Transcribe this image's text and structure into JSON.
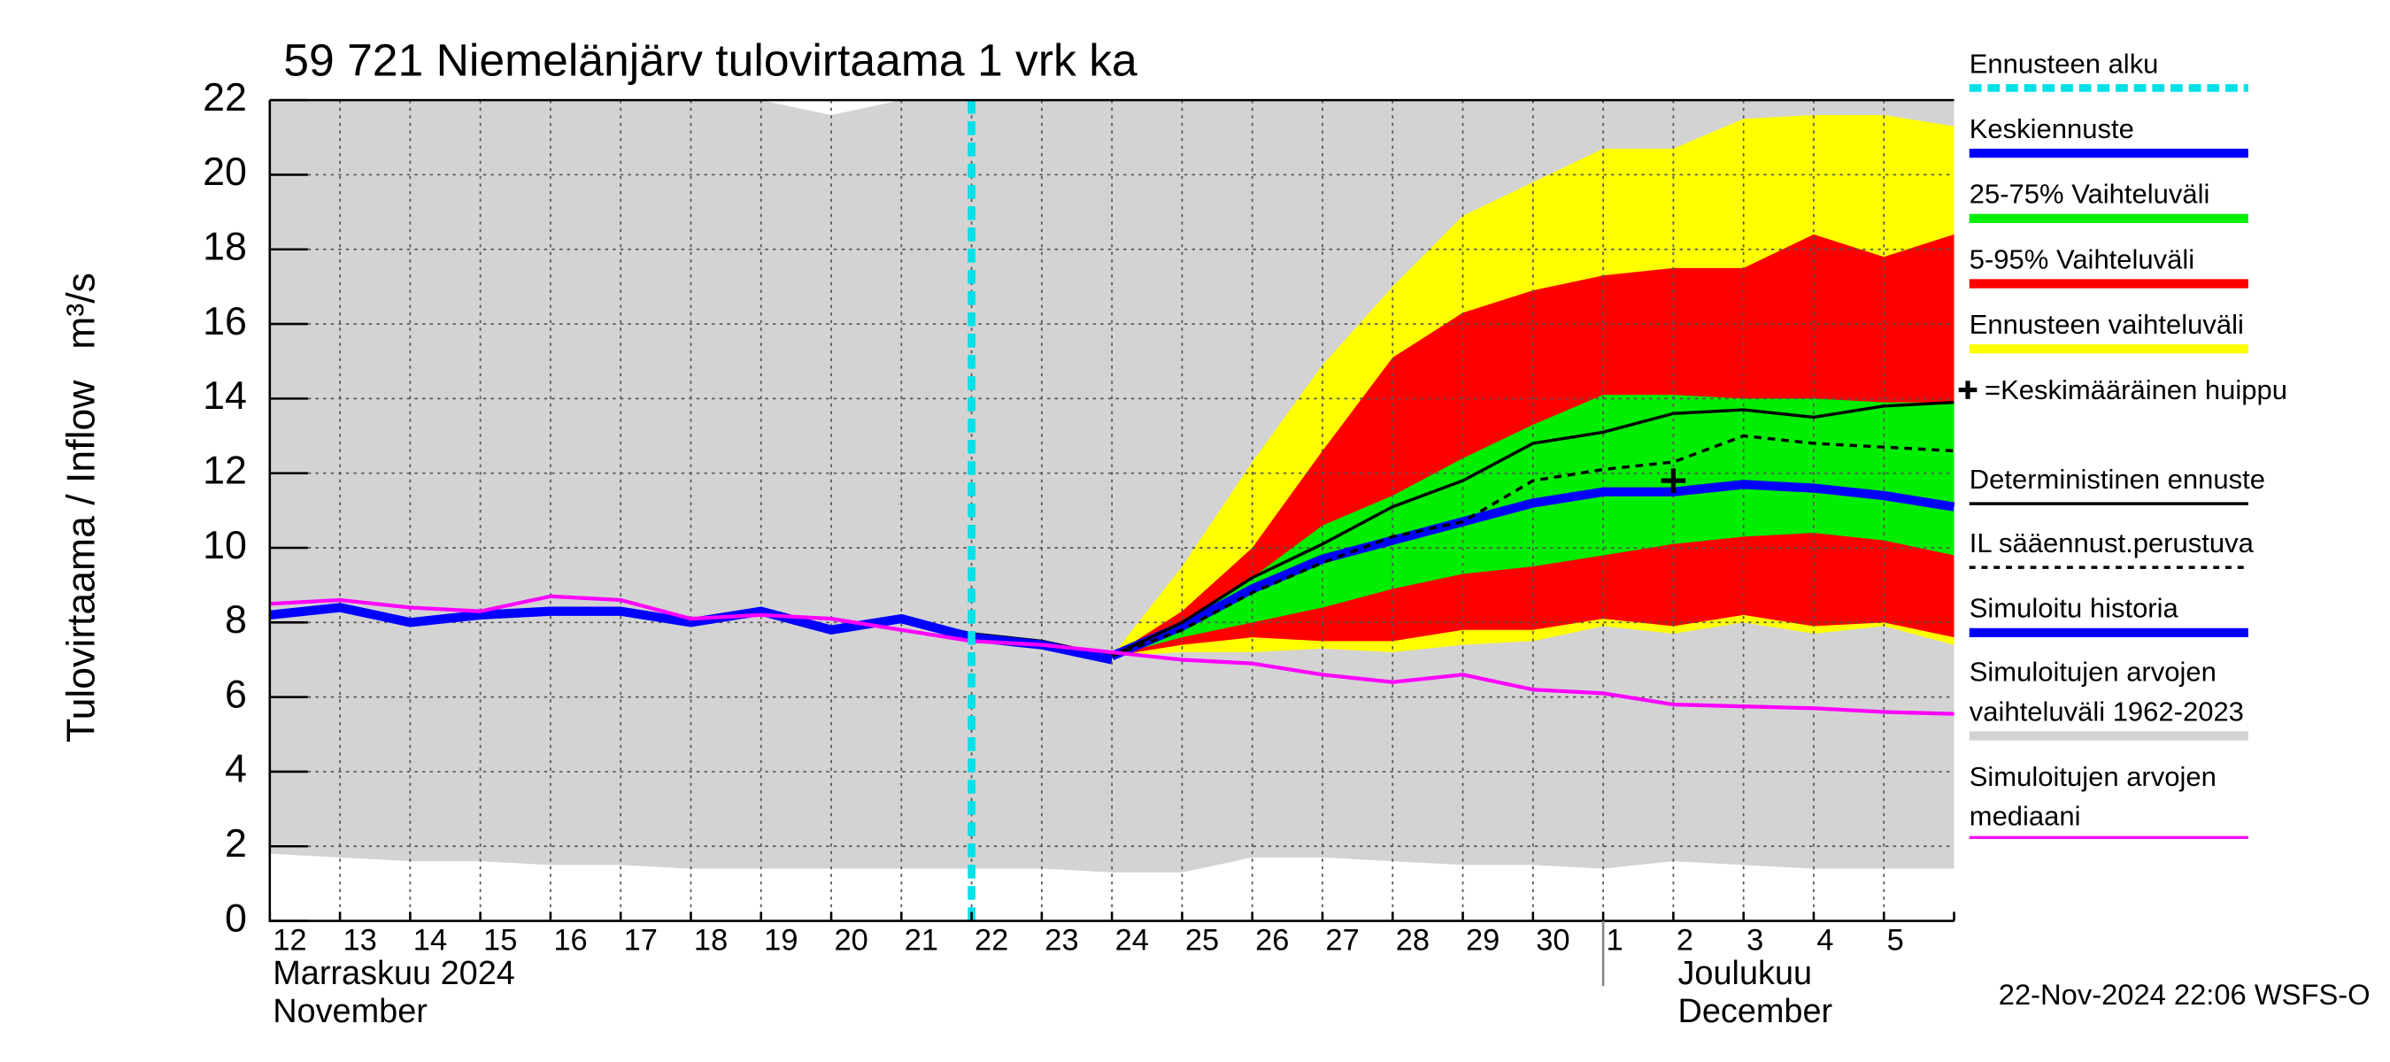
{
  "chart_data": {
    "type": "line",
    "title": "59 721 Niemelänjärv tulovirtaama 1 vrk ka",
    "y_label": "Tulovirtaama / Inflow",
    "y_unit": "m³/s",
    "footer": "22-Nov-2024 22:06 WSFS-O",
    "categories": [
      "12",
      "13",
      "14",
      "15",
      "16",
      "17",
      "18",
      "19",
      "20",
      "21",
      "22",
      "23",
      "24",
      "25",
      "26",
      "27",
      "28",
      "29",
      "30",
      "1",
      "2",
      "3",
      "4",
      "5",
      null
    ],
    "x_groups": [
      {
        "start": "12",
        "labels": [
          "Marraskuu 2024",
          "November"
        ]
      },
      {
        "start": "1",
        "labels": [
          "Joulukuu",
          "December"
        ]
      }
    ],
    "ylim": [
      0,
      22
    ],
    "yticks": [
      0,
      2,
      4,
      6,
      8,
      10,
      12,
      14,
      16,
      18,
      20,
      22
    ],
    "grid": true,
    "series": [
      {
        "name": "Ennusteen alku",
        "style": "vline",
        "color": "#00e0e8",
        "category": "22"
      },
      {
        "name": "Keskiennuste",
        "style": "line",
        "color": "#0000ff",
        "width": 6,
        "values": [
          null,
          null,
          null,
          null,
          null,
          null,
          null,
          null,
          null,
          null,
          null,
          null,
          7.1,
          7.9,
          8.9,
          9.7,
          10.2,
          10.7,
          11.2,
          11.5,
          11.5,
          11.7,
          11.6,
          11.4,
          11.1
        ]
      },
      {
        "name": "25-75% Vaihteluväli",
        "style": "band",
        "color": "#00ee00",
        "low": [
          null,
          null,
          null,
          null,
          null,
          null,
          null,
          null,
          null,
          null,
          null,
          null,
          7.1,
          7.6,
          8.0,
          8.4,
          8.9,
          9.3,
          9.5,
          9.8,
          10.1,
          10.3,
          10.4,
          10.2,
          9.8
        ],
        "high": [
          null,
          null,
          null,
          null,
          null,
          null,
          null,
          null,
          null,
          null,
          null,
          null,
          7.1,
          8.0,
          9.2,
          10.6,
          11.4,
          12.4,
          13.3,
          14.1,
          14.1,
          14.0,
          14.0,
          13.9,
          13.9
        ]
      },
      {
        "name": "5-95% Vaihteluväli",
        "style": "band",
        "color": "#ff0000",
        "low": [
          null,
          null,
          null,
          null,
          null,
          null,
          null,
          null,
          null,
          null,
          null,
          null,
          7.1,
          7.4,
          7.6,
          7.5,
          7.5,
          7.8,
          7.8,
          8.1,
          7.9,
          8.2,
          7.9,
          8.0,
          7.6
        ],
        "high": [
          null,
          null,
          null,
          null,
          null,
          null,
          null,
          null,
          null,
          null,
          null,
          null,
          7.1,
          8.3,
          10.0,
          12.6,
          15.1,
          16.3,
          16.9,
          17.3,
          17.5,
          17.5,
          18.4,
          17.8,
          18.4
        ]
      },
      {
        "name": "Ennusteen vaihteluväli",
        "style": "band",
        "color": "#ffff00",
        "low": [
          null,
          null,
          null,
          null,
          null,
          null,
          null,
          null,
          null,
          null,
          null,
          null,
          7.1,
          7.2,
          7.2,
          7.3,
          7.2,
          7.4,
          7.5,
          7.9,
          7.7,
          8.0,
          7.7,
          7.9,
          7.4
        ],
        "high": [
          null,
          null,
          null,
          null,
          null,
          null,
          null,
          null,
          null,
          null,
          null,
          null,
          7.1,
          9.5,
          12.3,
          14.9,
          17.0,
          18.9,
          19.8,
          20.7,
          20.7,
          21.5,
          21.6,
          21.6,
          21.3
        ]
      },
      {
        "name": "=Keskimääräinen huippu",
        "style": "marker",
        "color": "#000000",
        "category": "2",
        "value": 11.8
      },
      {
        "name": "Deterministinen ennuste",
        "style": "line",
        "color": "#000000",
        "width": 2,
        "values": [
          null,
          null,
          null,
          null,
          null,
          null,
          null,
          null,
          7.8,
          8.1,
          7.7,
          7.5,
          7.1,
          8.0,
          9.2,
          10.1,
          11.1,
          11.8,
          12.8,
          13.1,
          13.6,
          13.7,
          13.5,
          13.8,
          13.9
        ]
      },
      {
        "name": "IL sääennust.perustuva",
        "style": "dashed",
        "color": "#000000",
        "width": 2,
        "values": [
          null,
          null,
          null,
          null,
          null,
          null,
          null,
          null,
          null,
          null,
          null,
          null,
          7.1,
          7.8,
          8.8,
          9.6,
          10.3,
          10.7,
          11.8,
          12.1,
          12.3,
          13.0,
          12.8,
          12.7,
          12.6
        ]
      },
      {
        "name": "Simuloitu historia",
        "style": "line",
        "color": "#0000ff",
        "width": 6,
        "values": [
          8.2,
          8.4,
          8.0,
          8.2,
          8.3,
          8.3,
          8.0,
          8.3,
          7.8,
          8.1,
          7.6,
          7.4,
          7.0,
          null,
          null,
          null,
          null,
          null,
          null,
          null,
          null,
          null,
          null,
          null,
          null
        ]
      },
      {
        "name": "Simuloitujen arvojen vaihteluväli 1962-2023",
        "style": "band",
        "color": "#d3d3d3",
        "low": [
          1.8,
          1.7,
          1.6,
          1.6,
          1.5,
          1.5,
          1.4,
          1.4,
          1.4,
          1.4,
          1.4,
          1.4,
          1.3,
          1.3,
          1.7,
          1.7,
          1.6,
          1.5,
          1.5,
          1.4,
          1.6,
          1.5,
          1.4,
          1.4,
          1.4
        ],
        "high": [
          22,
          22,
          22,
          22,
          22,
          22,
          22,
          22,
          21.6,
          22,
          22,
          22,
          22,
          22,
          22,
          22,
          22,
          22,
          22,
          22,
          22,
          22,
          22,
          22,
          22
        ]
      },
      {
        "name": "Simuloitujen arvojen mediaani",
        "style": "line",
        "color": "#ff00ff",
        "width": 2.5,
        "values": [
          8.5,
          8.6,
          8.4,
          8.3,
          8.7,
          8.6,
          8.1,
          8.2,
          8.1,
          7.8,
          7.5,
          7.4,
          7.2,
          7.0,
          6.9,
          6.6,
          6.4,
          6.6,
          6.2,
          6.1,
          5.8,
          5.75,
          5.7,
          5.6,
          5.55
        ]
      }
    ]
  }
}
